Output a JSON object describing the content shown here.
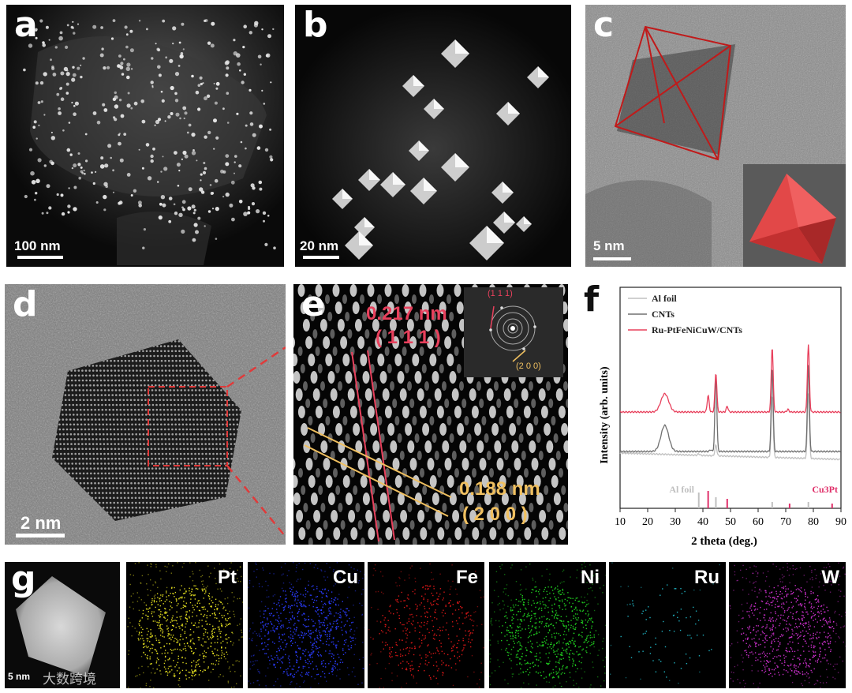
{
  "panels": {
    "a": {
      "label": "a",
      "scale": "100 nm"
    },
    "b": {
      "label": "b",
      "scale": "20 nm"
    },
    "c": {
      "label": "c",
      "scale": "5 nm"
    },
    "d": {
      "label": "d",
      "scale": "2 nm"
    },
    "e": {
      "label": "e",
      "d1": "0.217 nm",
      "h1": "( 1 1 1 )",
      "d2": "0.188 nm",
      "h2": "( 2 0 0 )",
      "fft1": "(1 1 1)",
      "fft2": "(2 0 0)"
    },
    "f": {
      "label": "f"
    },
    "g": {
      "label": "g",
      "scale": "5 nm",
      "watermark": "大数跨境",
      "elements": [
        "Pt",
        "Cu",
        "Fe",
        "Ni",
        "Ru",
        "W"
      ]
    }
  },
  "colors": {
    "pink": "#e8405c",
    "gold": "#f0c060",
    "gray": "#aaaaaa",
    "dark": "#555555",
    "Pt": "#e6e020",
    "Cu": "#2a3cff",
    "Fe": "#e01818",
    "Ni": "#20d020",
    "Ru": "#20b8c8",
    "W": "#d030d0"
  },
  "chart_data": {
    "type": "line",
    "xlabel": "2 theta (deg.)",
    "ylabel": "Intensity (arb. units)",
    "xlim": [
      10,
      90
    ],
    "xticks": [
      10,
      20,
      30,
      40,
      50,
      60,
      70,
      80,
      90
    ],
    "legend_position": "top-left",
    "series": [
      {
        "name": "Al foil",
        "color": "#c0c0c0",
        "peaks": [
          [
            38.5,
            4
          ],
          [
            44.7,
            30
          ],
          [
            65.1,
            175
          ],
          [
            78.2,
            185
          ]
        ]
      },
      {
        "name": "CNTs",
        "color": "#707070",
        "peaks": [
          [
            26.2,
            60
          ],
          [
            42.8,
            4
          ],
          [
            44.7,
            175
          ],
          [
            65.1,
            195
          ],
          [
            78.2,
            200
          ]
        ]
      },
      {
        "name": "Ru-PtFeNiCuW/CNTs",
        "color": "#e8405c",
        "peaks": [
          [
            26.2,
            42
          ],
          [
            41.9,
            38
          ],
          [
            48.8,
            13
          ],
          [
            70.8,
            6
          ],
          [
            44.7,
            90
          ],
          [
            65.1,
            150
          ],
          [
            78.2,
            155
          ]
        ]
      }
    ],
    "references": [
      {
        "name": "Al foil",
        "color": "#c0c0c0",
        "positions": [
          38.5,
          44.7,
          65.1,
          78.2
        ]
      },
      {
        "name": "Cu3Pt",
        "color": "#e0306a",
        "positions": [
          41.9,
          48.8,
          71.4,
          86.8
        ]
      }
    ]
  }
}
